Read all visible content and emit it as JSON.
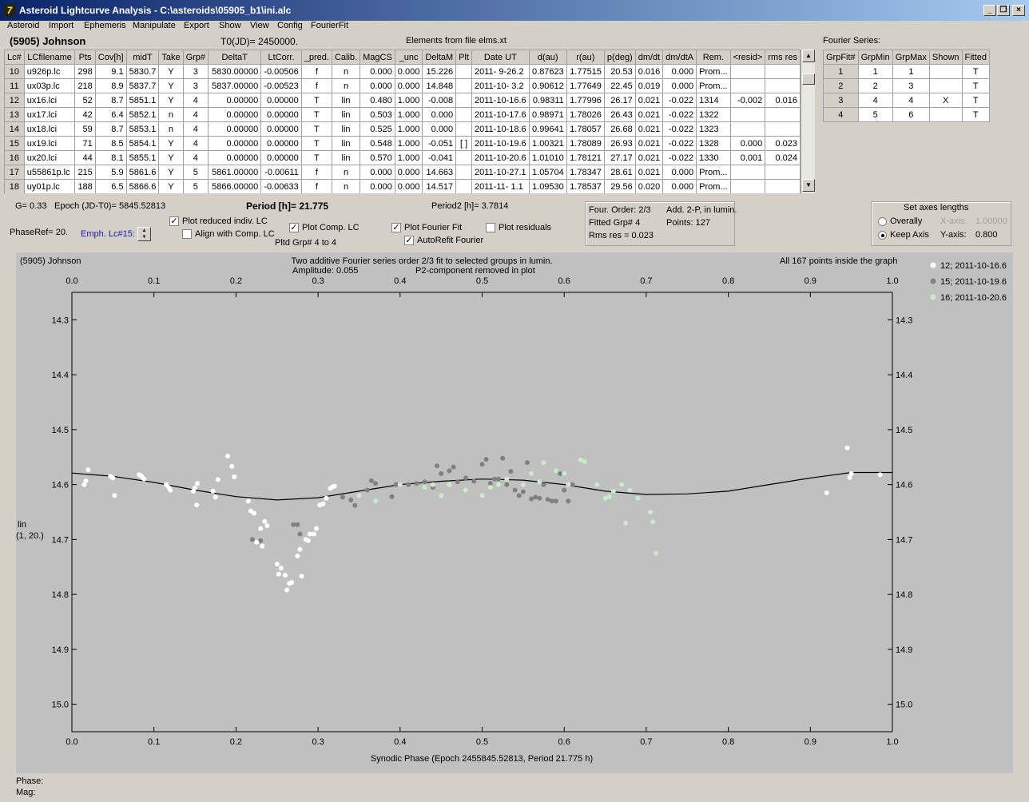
{
  "window": {
    "title": "Asteroid Lightcurve Analysis - C:\\asteroids\\05905_b1\\ini.alc",
    "icon": "app-icon"
  },
  "menu": [
    "Asteroid",
    "Import",
    "Ephemeris",
    "Manipulate",
    "Export",
    "Show",
    "View",
    "Config",
    "FourierFit"
  ],
  "asteroid_name": "(5905) Johnson",
  "t0": "T0(JD)= 2450000.",
  "elements": "Elements from file elms.xt",
  "fourier_series_label": "Fourier Series:",
  "lc_table": {
    "headers": [
      "Lc#",
      "LCfilename",
      "Pts",
      "Cov[h]",
      "midT",
      "Take",
      "Grp#",
      "DeltaT",
      "LtCorr.",
      "_pred.",
      "Calib.",
      "MagCS",
      "_unc",
      "DeltaM",
      "Plt",
      "Date UT",
      "d(au)",
      "r(au)",
      "p(deg)",
      "dm/dt",
      "dm/dtA",
      "Rem.",
      "<resid>",
      "rms res"
    ],
    "rows": [
      [
        "10",
        "u926p.lc",
        "298",
        "9.1",
        "5830.7",
        "Y",
        "3",
        "5830.00000",
        "-0.00506",
        "f",
        "n",
        "0.000",
        "0.000",
        "15.226",
        "",
        "2011- 9-26.2",
        "0.87623",
        "1.77515",
        "20.53",
        "0.016",
        "0.000",
        "Prom...",
        "",
        ""
      ],
      [
        "11",
        "ux03p.lc",
        "218",
        "8.9",
        "5837.7",
        "Y",
        "3",
        "5837.00000",
        "-0.00523",
        "f",
        "n",
        "0.000",
        "0.000",
        "14.848",
        "",
        "2011-10- 3.2",
        "0.90612",
        "1.77649",
        "22.45",
        "0.019",
        "0.000",
        "Prom...",
        "",
        ""
      ],
      [
        "12",
        "ux16.lci",
        "52",
        "8.7",
        "5851.1",
        "Y",
        "4",
        "0.00000",
        "0.00000",
        "T",
        "lin",
        "0.480",
        "1.000",
        "-0.008",
        "",
        "2011-10-16.6",
        "0.98311",
        "1.77996",
        "26.17",
        "0.021",
        "-0.022",
        "1314",
        "-0.002",
        "0.016"
      ],
      [
        "13",
        "ux17.lci",
        "42",
        "6.4",
        "5852.1",
        "n",
        "4",
        "0.00000",
        "0.00000",
        "T",
        "lin",
        "0.503",
        "1.000",
        "0.000",
        "",
        "2011-10-17.6",
        "0.98971",
        "1.78026",
        "26.43",
        "0.021",
        "-0.022",
        "1322",
        "",
        ""
      ],
      [
        "14",
        "ux18.lci",
        "59",
        "8.7",
        "5853.1",
        "n",
        "4",
        "0.00000",
        "0.00000",
        "T",
        "lin",
        "0.525",
        "1.000",
        "0.000",
        "",
        "2011-10-18.6",
        "0.99641",
        "1.78057",
        "26.68",
        "0.021",
        "-0.022",
        "1323",
        "",
        ""
      ],
      [
        "15",
        "ux19.lci",
        "71",
        "8.5",
        "5854.1",
        "Y",
        "4",
        "0.00000",
        "0.00000",
        "T",
        "lin",
        "0.548",
        "1.000",
        "-0.051",
        "[ ]",
        "2011-10-19.6",
        "1.00321",
        "1.78089",
        "26.93",
        "0.021",
        "-0.022",
        "1328",
        "0.000",
        "0.023"
      ],
      [
        "16",
        "ux20.lci",
        "44",
        "8.1",
        "5855.1",
        "Y",
        "4",
        "0.00000",
        "0.00000",
        "T",
        "lin",
        "0.570",
        "1.000",
        "-0.041",
        "",
        "2011-10-20.6",
        "1.01010",
        "1.78121",
        "27.17",
        "0.021",
        "-0.022",
        "1330",
        "0.001",
        "0.024"
      ],
      [
        "17",
        "u55861p.lc",
        "215",
        "5.9",
        "5861.6",
        "Y",
        "5",
        "5861.00000",
        "-0.00611",
        "f",
        "n",
        "0.000",
        "0.000",
        "14.663",
        "",
        "2011-10-27.1",
        "1.05704",
        "1.78347",
        "28.61",
        "0.021",
        "0.000",
        "Prom...",
        "",
        ""
      ],
      [
        "18",
        "uy01p.lc",
        "188",
        "6.5",
        "5866.6",
        "Y",
        "5",
        "5866.00000",
        "-0.00633",
        "f",
        "n",
        "0.000",
        "0.000",
        "14.517",
        "",
        "2011-11- 1.1",
        "1.09530",
        "1.78537",
        "29.56",
        "0.020",
        "0.000",
        "Prom...",
        "",
        ""
      ]
    ]
  },
  "fourier_table": {
    "headers": [
      "GrpFit#",
      "GrpMin",
      "GrpMax",
      "Shown",
      "Fitted"
    ],
    "rows": [
      [
        "1",
        "1",
        "1",
        "",
        "T"
      ],
      [
        "2",
        "2",
        "3",
        "",
        "T"
      ],
      [
        "3",
        "4",
        "4",
        "X",
        "T"
      ],
      [
        "4",
        "5",
        "6",
        "",
        "T"
      ]
    ]
  },
  "controls": {
    "g": "G= 0.33",
    "epoch": "Epoch (JD-T0)= 5845.52813",
    "period": "Period [h]= 21.775",
    "period2": "Period2 [h]= 3.7814",
    "phaseref": "PhaseRef= 20.",
    "emph": "Emph. Lc#15:",
    "plot_reduced": "Plot reduced indiv. LC",
    "align_comp": "Align with Comp. LC",
    "plot_comp": "Plot Comp. LC",
    "pltd_grp": "Pltd Grp#  4  to   4",
    "plot_fourier": "Plot Fourier Fit",
    "autorefit": "AutoRefit Fourier",
    "plot_residuals": "Plot residuals"
  },
  "fitinfo": {
    "order": "Four. Order:  2/3",
    "add": "Add. 2-P, in lumin.",
    "fitted": "Fitted Grp# 4",
    "points": "Points: 127",
    "rms": "Rms res     = 0.023"
  },
  "axes_box": {
    "title": "Set axes lengths",
    "overall": "Overally",
    "keep": "Keep Axis",
    "xaxis": "X-axis:",
    "xval": "1.00000",
    "yaxis": "Y-axis:",
    "yval": "0.800"
  },
  "status": {
    "phase": "Phase:",
    "mag": "Mag:"
  },
  "chart_data": {
    "type": "scatter",
    "title_left": "(5905) Johnson",
    "title": "Two additive Fourier series order 2/3 fit to selected groups in lumin.",
    "subtitle_left": "Amplitude: 0.055",
    "subtitle_right": "P2-component removed in plot",
    "note": "All 167 points inside the graph",
    "xlabel": "Synodic Phase (Epoch 2455845.52813, Period 21.775 h)",
    "ylabel": "lin",
    "ylabel2": "(1, 20.)",
    "xlim": [
      0,
      1
    ],
    "ylim": [
      14.25,
      15.05
    ],
    "y_inverted": true,
    "xticks": [
      "0.0",
      "0.1",
      "0.2",
      "0.3",
      "0.4",
      "0.5",
      "0.6",
      "0.7",
      "0.8",
      "0.9",
      "1.0"
    ],
    "yticks": [
      "14.3",
      "14.4",
      "14.5",
      "14.6",
      "14.7",
      "14.8",
      "14.9",
      "15.0"
    ],
    "series": [
      {
        "name": "12; 2011-10-16.6",
        "color": "#ffffff",
        "points": [
          [
            0.015,
            14.6
          ],
          [
            0.017,
            14.593
          ],
          [
            0.02,
            14.573
          ],
          [
            0.047,
            14.585
          ],
          [
            0.05,
            14.588
          ],
          [
            0.052,
            14.62
          ],
          [
            0.082,
            14.582
          ],
          [
            0.085,
            14.585
          ],
          [
            0.088,
            14.59
          ],
          [
            0.115,
            14.6
          ],
          [
            0.118,
            14.605
          ],
          [
            0.12,
            14.61
          ],
          [
            0.148,
            14.612
          ],
          [
            0.15,
            14.606
          ],
          [
            0.152,
            14.637
          ],
          [
            0.153,
            14.598
          ],
          [
            0.172,
            14.612
          ],
          [
            0.175,
            14.623
          ],
          [
            0.178,
            14.591
          ],
          [
            0.19,
            14.548
          ],
          [
            0.195,
            14.567
          ],
          [
            0.198,
            14.586
          ],
          [
            0.215,
            14.63
          ],
          [
            0.218,
            14.648
          ],
          [
            0.222,
            14.652
          ],
          [
            0.225,
            14.705
          ],
          [
            0.23,
            14.68
          ],
          [
            0.232,
            14.712
          ],
          [
            0.235,
            14.667
          ],
          [
            0.238,
            14.675
          ],
          [
            0.25,
            14.745
          ],
          [
            0.252,
            14.763
          ],
          [
            0.255,
            14.752
          ],
          [
            0.26,
            14.765
          ],
          [
            0.262,
            14.792
          ],
          [
            0.265,
            14.78
          ],
          [
            0.268,
            14.778
          ],
          [
            0.275,
            14.73
          ],
          [
            0.278,
            14.718
          ],
          [
            0.28,
            14.767
          ],
          [
            0.285,
            14.7
          ],
          [
            0.288,
            14.702
          ],
          [
            0.29,
            14.69
          ],
          [
            0.295,
            14.69
          ],
          [
            0.298,
            14.68
          ],
          [
            0.302,
            14.637
          ],
          [
            0.306,
            14.635
          ],
          [
            0.31,
            14.625
          ],
          [
            0.315,
            14.607
          ],
          [
            0.318,
            14.604
          ],
          [
            0.32,
            14.603
          ],
          [
            0.92,
            14.615
          ],
          [
            0.945,
            14.533
          ],
          [
            0.948,
            14.587
          ],
          [
            0.95,
            14.58
          ],
          [
            0.985,
            14.582
          ]
        ]
      },
      {
        "name": "15; 2011-10-19.6",
        "color": "#808080",
        "points": [
          [
            0.22,
            14.7
          ],
          [
            0.23,
            14.702
          ],
          [
            0.27,
            14.673
          ],
          [
            0.275,
            14.673
          ],
          [
            0.278,
            14.69
          ],
          [
            0.33,
            14.623
          ],
          [
            0.34,
            14.628
          ],
          [
            0.345,
            14.638
          ],
          [
            0.36,
            14.61
          ],
          [
            0.365,
            14.593
          ],
          [
            0.37,
            14.598
          ],
          [
            0.39,
            14.622
          ],
          [
            0.395,
            14.6
          ],
          [
            0.41,
            14.6
          ],
          [
            0.42,
            14.598
          ],
          [
            0.43,
            14.595
          ],
          [
            0.44,
            14.605
          ],
          [
            0.445,
            14.566
          ],
          [
            0.45,
            14.58
          ],
          [
            0.46,
            14.575
          ],
          [
            0.465,
            14.568
          ],
          [
            0.47,
            14.595
          ],
          [
            0.48,
            14.588
          ],
          [
            0.49,
            14.594
          ],
          [
            0.5,
            14.563
          ],
          [
            0.505,
            14.554
          ],
          [
            0.51,
            14.598
          ],
          [
            0.515,
            14.59
          ],
          [
            0.52,
            14.59
          ],
          [
            0.525,
            14.552
          ],
          [
            0.53,
            14.6
          ],
          [
            0.535,
            14.576
          ],
          [
            0.54,
            14.61
          ],
          [
            0.545,
            14.62
          ],
          [
            0.55,
            14.613
          ],
          [
            0.555,
            14.56
          ],
          [
            0.56,
            14.626
          ],
          [
            0.565,
            14.623
          ],
          [
            0.57,
            14.625
          ],
          [
            0.575,
            14.6
          ],
          [
            0.58,
            14.627
          ],
          [
            0.585,
            14.63
          ],
          [
            0.59,
            14.63
          ],
          [
            0.595,
            14.58
          ],
          [
            0.6,
            14.61
          ],
          [
            0.605,
            14.63
          ],
          [
            0.61,
            14.6
          ]
        ]
      },
      {
        "name": "16; 2011-10-20.6",
        "color": "#c8ecc8",
        "points": [
          [
            0.35,
            14.62
          ],
          [
            0.37,
            14.63
          ],
          [
            0.4,
            14.6
          ],
          [
            0.43,
            14.605
          ],
          [
            0.44,
            14.6
          ],
          [
            0.45,
            14.62
          ],
          [
            0.46,
            14.6
          ],
          [
            0.48,
            14.61
          ],
          [
            0.5,
            14.62
          ],
          [
            0.51,
            14.605
          ],
          [
            0.52,
            14.6
          ],
          [
            0.53,
            14.59
          ],
          [
            0.55,
            14.6
          ],
          [
            0.56,
            14.58
          ],
          [
            0.57,
            14.595
          ],
          [
            0.575,
            14.56
          ],
          [
            0.59,
            14.575
          ],
          [
            0.6,
            14.58
          ],
          [
            0.605,
            14.6
          ],
          [
            0.62,
            14.555
          ],
          [
            0.625,
            14.558
          ],
          [
            0.64,
            14.6
          ],
          [
            0.65,
            14.625
          ],
          [
            0.655,
            14.622
          ],
          [
            0.66,
            14.612
          ],
          [
            0.67,
            14.6
          ],
          [
            0.675,
            14.67
          ],
          [
            0.68,
            14.61
          ],
          [
            0.69,
            14.625
          ],
          [
            0.705,
            14.65
          ],
          [
            0.708,
            14.668
          ],
          [
            0.712,
            14.725
          ]
        ]
      }
    ],
    "fit_curve": [
      [
        0.0,
        14.579
      ],
      [
        0.05,
        14.585
      ],
      [
        0.1,
        14.596
      ],
      [
        0.15,
        14.61
      ],
      [
        0.2,
        14.622
      ],
      [
        0.25,
        14.628
      ],
      [
        0.3,
        14.624
      ],
      [
        0.35,
        14.612
      ],
      [
        0.4,
        14.6
      ],
      [
        0.45,
        14.594
      ],
      [
        0.5,
        14.59
      ],
      [
        0.55,
        14.592
      ],
      [
        0.6,
        14.6
      ],
      [
        0.65,
        14.612
      ],
      [
        0.7,
        14.618
      ],
      [
        0.75,
        14.617
      ],
      [
        0.8,
        14.612
      ],
      [
        0.85,
        14.6
      ],
      [
        0.9,
        14.588
      ],
      [
        0.95,
        14.578
      ],
      [
        1.0,
        14.578
      ]
    ]
  }
}
